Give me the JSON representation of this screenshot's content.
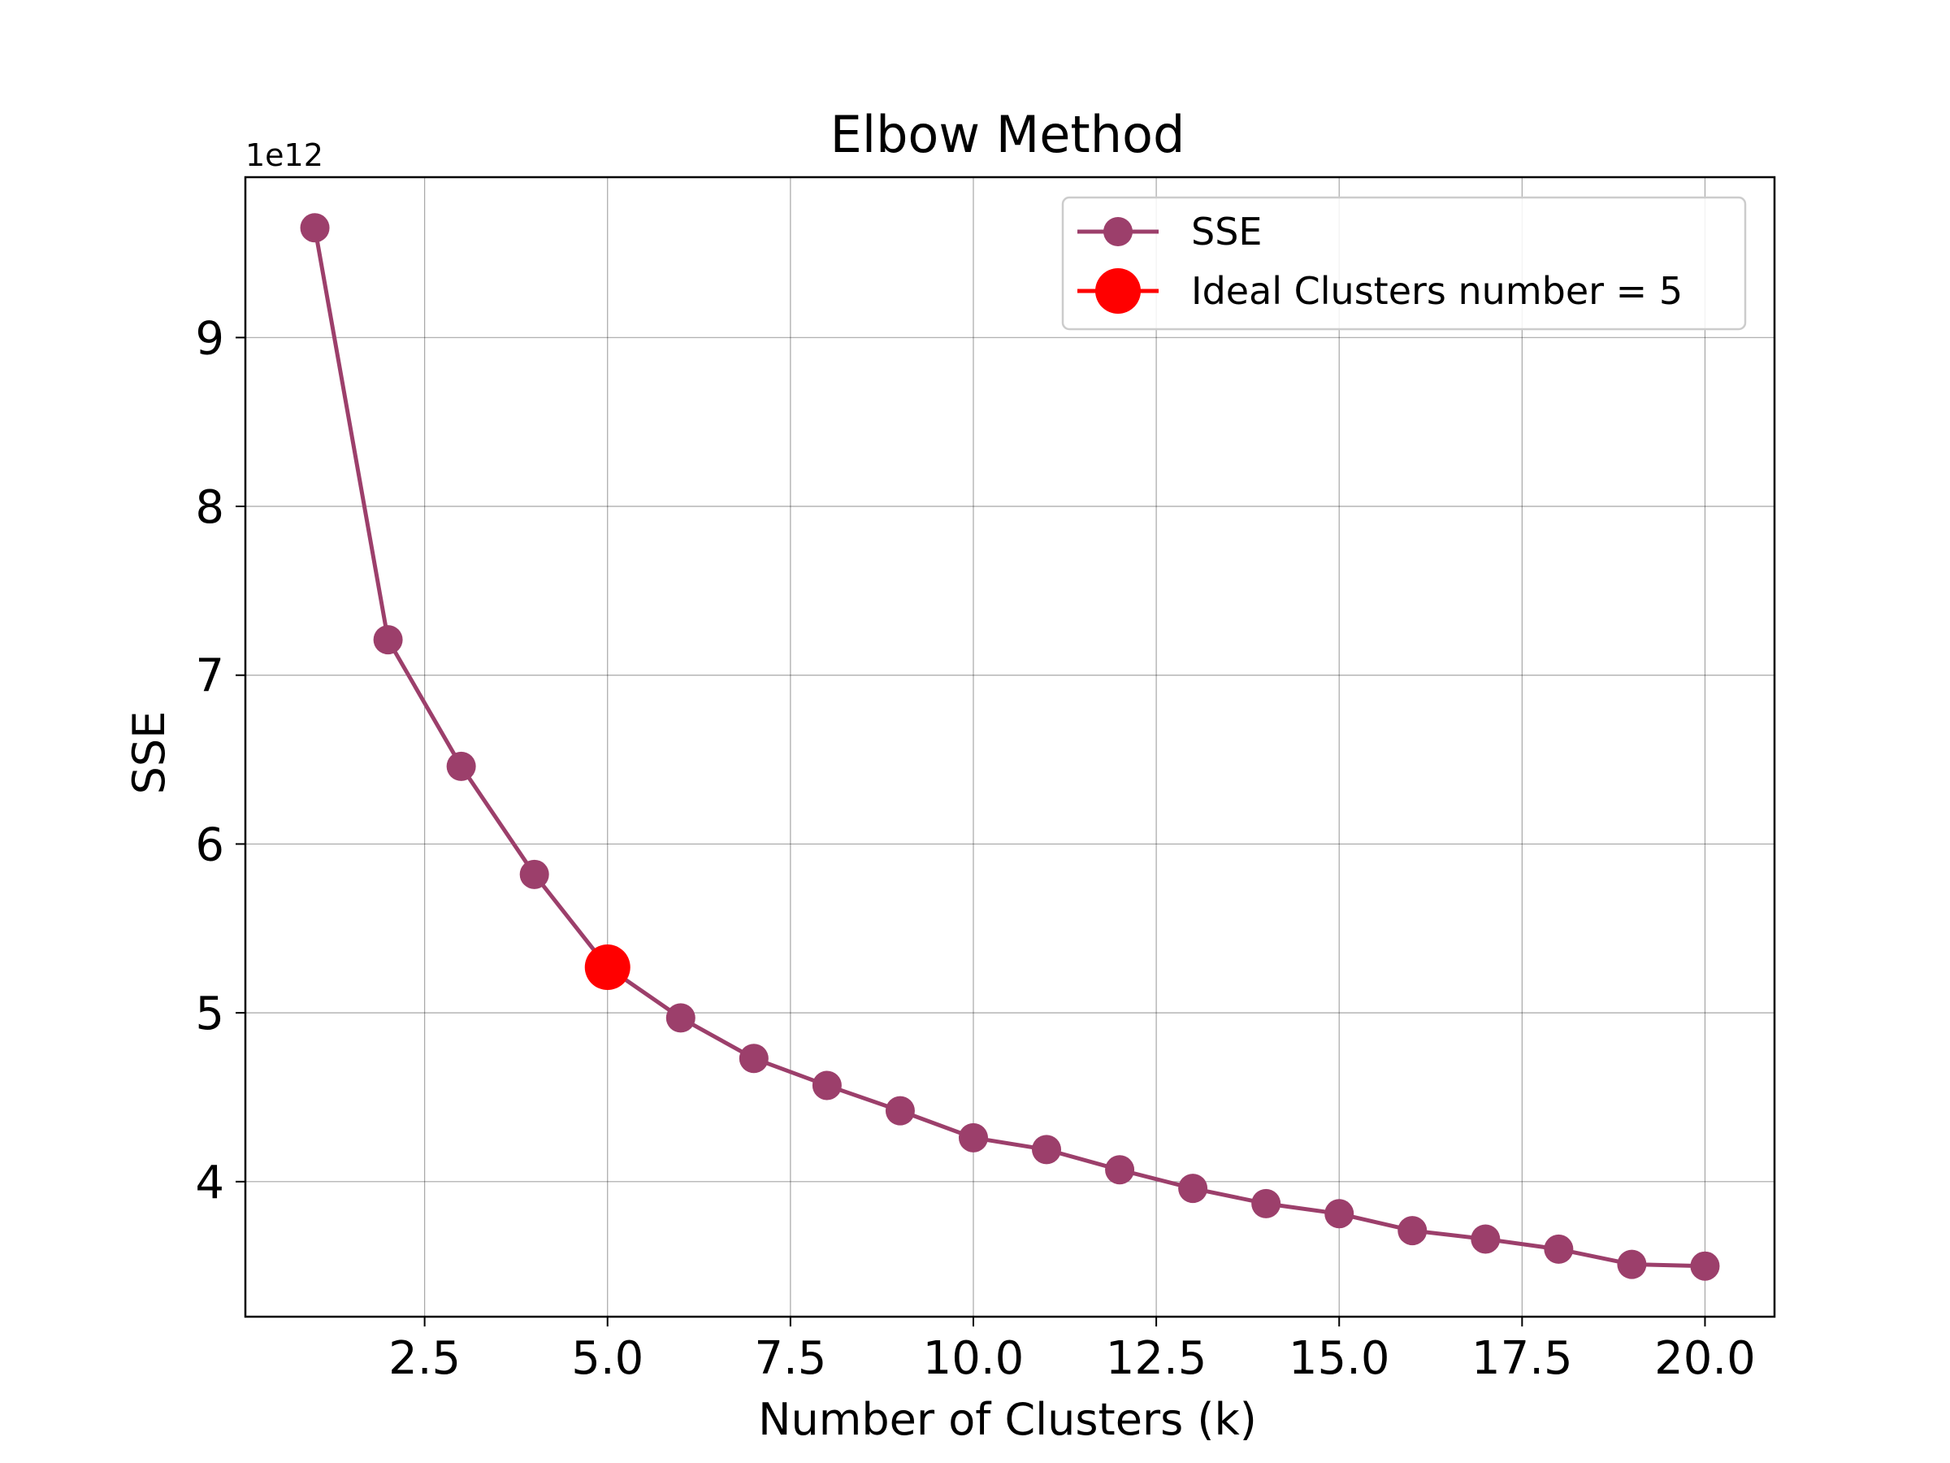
{
  "chart_data": {
    "type": "line",
    "title": "Elbow Method",
    "xlabel": "Number of Clusters (k)",
    "ylabel": "SSE",
    "y_offset_label": "1e12",
    "xlim": [
      0.05,
      20.95
    ],
    "ylim": [
      3.2,
      9.95
    ],
    "x_ticks": [
      2.5,
      5.0,
      7.5,
      10.0,
      12.5,
      15.0,
      17.5,
      20.0
    ],
    "x_tick_labels": [
      "2.5",
      "5.0",
      "7.5",
      "10.0",
      "12.5",
      "15.0",
      "17.5",
      "20.0"
    ],
    "y_ticks": [
      4,
      5,
      6,
      7,
      8,
      9
    ],
    "y_tick_labels": [
      "4",
      "5",
      "6",
      "7",
      "8",
      "9"
    ],
    "grid": true,
    "legend_position": "top-right",
    "series": [
      {
        "name": "SSE",
        "color": "#9c3f6b",
        "marker": "circle",
        "x": [
          1,
          2,
          3,
          4,
          5,
          6,
          7,
          8,
          9,
          10,
          11,
          12,
          13,
          14,
          15,
          16,
          17,
          18,
          19,
          20
        ],
        "y": [
          9.65,
          7.21,
          6.46,
          5.82,
          5.27,
          4.97,
          4.73,
          4.57,
          4.42,
          4.26,
          4.19,
          4.07,
          3.96,
          3.87,
          3.81,
          3.71,
          3.66,
          3.6,
          3.51,
          3.5
        ]
      },
      {
        "name": "Ideal Clusters number = 5",
        "color": "#ff0000",
        "marker": "circle",
        "x": [
          5
        ],
        "y": [
          5.27
        ]
      }
    ]
  }
}
